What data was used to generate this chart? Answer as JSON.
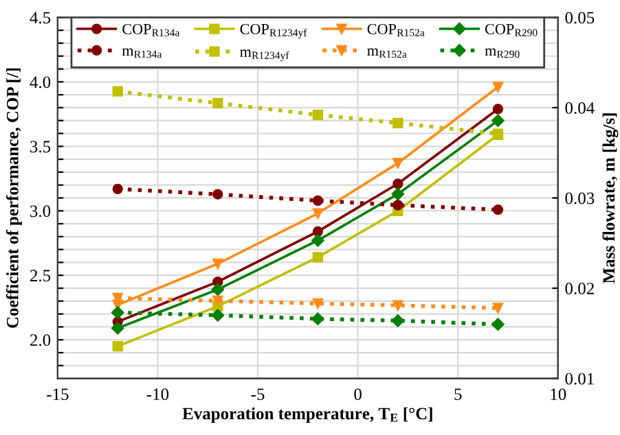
{
  "chart_data": {
    "type": "line",
    "xlabel": "Evaporation temperature, T$_{E}$ [°C]",
    "ylabel": "Coefficient of performance, COP [/]",
    "y2label": "Mass flowrate, m [kg/s]",
    "x": [
      -12,
      -7,
      -2,
      2,
      7
    ],
    "xlim": [
      -15,
      10
    ],
    "xticks": [
      -15,
      -10,
      -5,
      0,
      5,
      10
    ],
    "ylim": [
      1.7,
      4.5
    ],
    "yticks": [
      {
        "value": 1.8,
        "label": null
      },
      {
        "value": 1.9,
        "label": null
      },
      {
        "value": 2.0,
        "label": "2.0"
      },
      {
        "value": 2.1,
        "label": null
      },
      {
        "value": 2.2,
        "label": null
      },
      {
        "value": 2.3,
        "label": null
      },
      {
        "value": 2.4,
        "label": null
      },
      2.5,
      {
        "value": 2.6,
        "label": null
      },
      {
        "value": 2.7,
        "label": null
      },
      {
        "value": 2.8,
        "label": null
      },
      {
        "value": 2.9,
        "label": null
      },
      {
        "value": 3.0,
        "label": "3.0"
      },
      {
        "value": 3.1,
        "label": null
      },
      {
        "value": 3.2,
        "label": null
      },
      {
        "value": 3.3,
        "label": null
      },
      {
        "value": 3.4,
        "label": null
      },
      3.5,
      {
        "value": 3.6,
        "label": null
      },
      {
        "value": 3.7,
        "label": null
      },
      {
        "value": 3.8,
        "label": null
      },
      {
        "value": 3.9,
        "label": null
      },
      {
        "value": 4.0,
        "label": "4.0"
      },
      {
        "value": 4.1,
        "label": null
      },
      {
        "value": 4.2,
        "label": null
      },
      {
        "value": 4.3,
        "label": null
      },
      {
        "value": 4.4,
        "label": null
      },
      4.5
    ],
    "y2lim": [
      0.01,
      0.05
    ],
    "y2ticks": [
      0.01,
      0.02,
      0.03,
      0.04,
      0.05
    ],
    "grid": true,
    "legend": "top",
    "series": [
      {
        "name": "COP$_{R134a}$",
        "color": "#800000",
        "marker": "circle",
        "line_style": "solid",
        "values": [
          2.14,
          2.45,
          2.84,
          3.21,
          3.79
        ]
      },
      {
        "name": "m$_{R134a}$",
        "color": "#800000",
        "marker": "circle",
        "line_style": "dotted",
        "axis": "y2",
        "values": [
          0.031,
          0.0304,
          0.0297,
          0.0292,
          0.0287
        ]
      },
      {
        "name": "COP$_{R1234yf}$",
        "color": "#c0c000",
        "marker": "square",
        "line_style": "solid",
        "values": [
          1.95,
          2.26,
          2.64,
          3.0,
          3.59
        ]
      },
      {
        "name": "m$_{R1234yf}$",
        "color": "#c0c000",
        "marker": "square",
        "line_style": "dotted",
        "axis": "y2",
        "values": [
          0.0418,
          0.0405,
          0.0392,
          0.0383,
          0.0371
        ]
      },
      {
        "name": "COP$_{R152a}$",
        "color": "#ff8c1a",
        "marker": "triangle",
        "line_style": "solid",
        "values": [
          2.27,
          2.59,
          2.98,
          3.37,
          3.96
        ]
      },
      {
        "name": "m$_{R152a}$",
        "color": "#ff8c1a",
        "marker": "triangle",
        "line_style": "dotted",
        "axis": "y2",
        "values": [
          0.0189,
          0.0186,
          0.0183,
          0.0181,
          0.0178
        ]
      },
      {
        "name": "COP$_{R290}$",
        "color": "#008000",
        "marker": "diamond",
        "line_style": "solid",
        "values": [
          2.09,
          2.39,
          2.77,
          3.13,
          3.7
        ]
      },
      {
        "name": "m$_{R290}$",
        "color": "#008000",
        "marker": "diamond",
        "line_style": "dotted",
        "axis": "y2",
        "values": [
          0.0173,
          0.017,
          0.0166,
          0.0164,
          0.016
        ]
      }
    ]
  }
}
